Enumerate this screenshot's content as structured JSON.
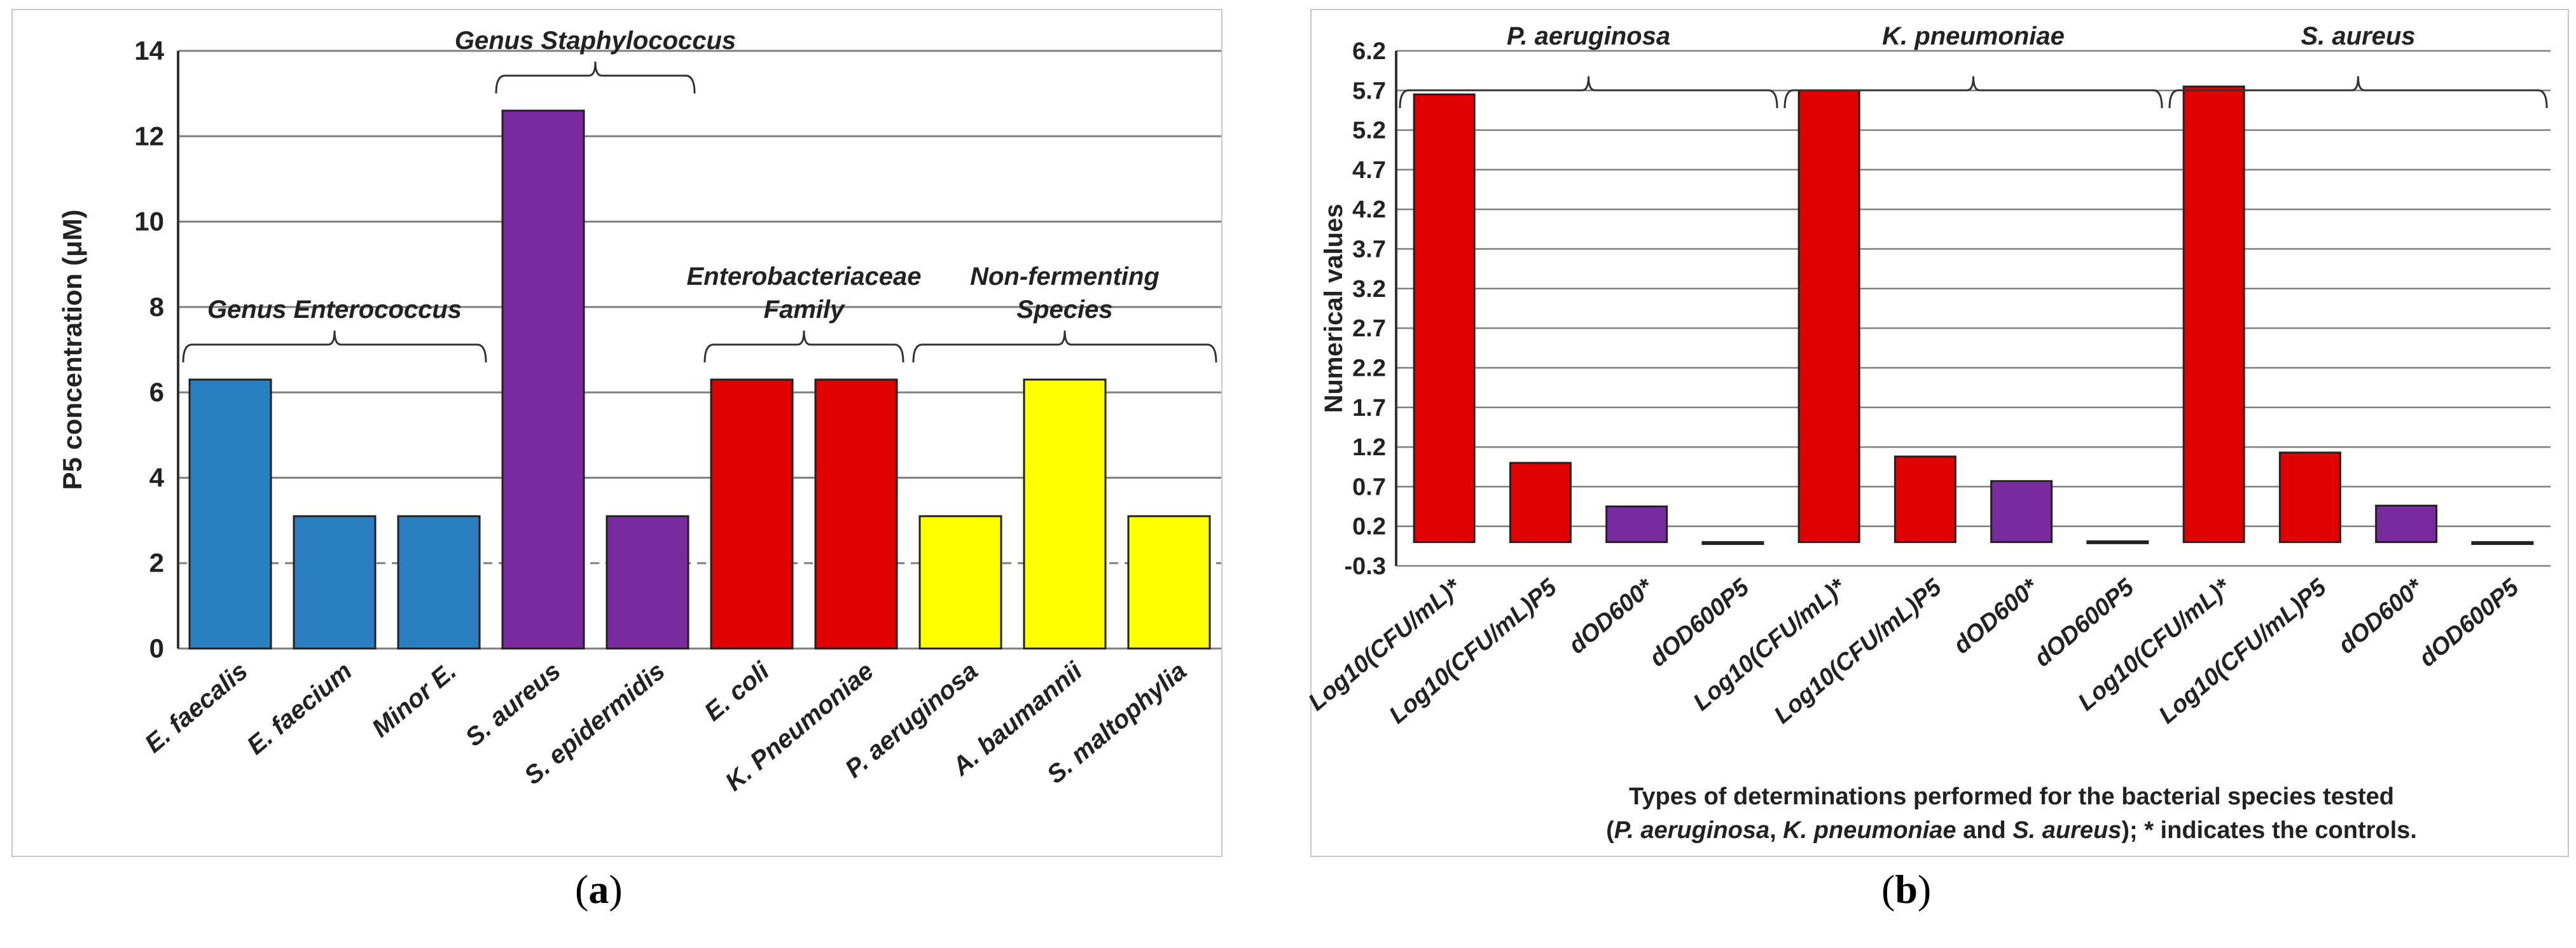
{
  "panel_labels": {
    "a_open": "(",
    "a_letter": "a",
    "a_close": ")",
    "b_open": "(",
    "b_letter": "b",
    "b_close": ")"
  },
  "colors": {
    "blue": "#2a7fc1",
    "purple": "#7a2a9f",
    "red": "#e00000",
    "yellow": "#ffff00",
    "grid": "#7f7f7f"
  },
  "chart_data": [
    {
      "id": "a",
      "type": "bar",
      "title": "",
      "xlabel": "",
      "ylabel": "P5 concentration (μM)",
      "ylim": [
        0,
        14
      ],
      "yticks": [
        "0",
        "2",
        "4",
        "6",
        "8",
        "10",
        "12",
        "14"
      ],
      "categories": [
        "E. faecalis",
        "E. faecium",
        "Minor E.",
        "S. aureus",
        "S. epidermidis",
        "E. coli",
        "K. Pneumoniae",
        "P. aeruginosa",
        "A. baumannii",
        "S. maltophylia"
      ],
      "values": [
        6.3,
        3.1,
        3.1,
        12.6,
        3.1,
        6.3,
        6.3,
        3.1,
        6.3,
        3.1
      ],
      "bar_colors": [
        "blue",
        "blue",
        "blue",
        "purple",
        "purple",
        "red",
        "red",
        "yellow",
        "yellow",
        "yellow"
      ],
      "groups": [
        {
          "lines": [
            "Genus Enterococcus"
          ],
          "from": 0,
          "to": 2
        },
        {
          "lines": [
            "Genus Staphylococcus"
          ],
          "from": 3,
          "to": 4
        },
        {
          "lines": [
            "Enterobacteriaceae",
            "Family"
          ],
          "from": 5,
          "to": 6
        },
        {
          "lines": [
            "Non-fermenting",
            "Species"
          ],
          "from": 7,
          "to": 9
        }
      ]
    },
    {
      "id": "b",
      "type": "bar",
      "title": "",
      "ylabel": "Numerical values",
      "xlabel_line1": "Types of determinations performed for the bacterial species tested",
      "xlabel_line2": {
        "open": "(",
        "sp1": "P. aeruginosa",
        "sep1": ", ",
        "sp2": "K. pneumoniae",
        "and": " and ",
        "sp3": "S. aureus",
        "close": "); * indicates the controls."
      },
      "ylim": [
        -0.3,
        6.2
      ],
      "yticks": [
        "-0.3",
        "0.2",
        "0.7",
        "1.2",
        "1.7",
        "2.2",
        "2.7",
        "3.2",
        "3.7",
        "4.2",
        "4.7",
        "5.2",
        "5.7",
        "6.2"
      ],
      "categories": [
        "Log10(CFU/mL)*",
        "Log10(CFU/mL)P5",
        "dOD600*",
        "dOD600P5",
        "Log10(CFU/mL)*",
        "Log10(CFU/mL)P5",
        "dOD600*",
        "dOD600P5",
        "Log10(CFU/mL)*",
        "Log10(CFU/mL)P5",
        "dOD600*",
        "dOD600P5"
      ],
      "values": [
        5.65,
        1.0,
        0.45,
        -0.02,
        5.7,
        1.08,
        0.77,
        0.01,
        5.75,
        1.13,
        0.46,
        -0.02
      ],
      "bar_colors": [
        "red",
        "red",
        "purple",
        "purple",
        "red",
        "red",
        "purple",
        "purple",
        "red",
        "red",
        "purple",
        "purple"
      ],
      "groups": [
        {
          "lines": [
            "P. aeruginosa"
          ],
          "from": 0,
          "to": 3
        },
        {
          "lines": [
            "K. pneumoniae"
          ],
          "from": 4,
          "to": 7
        },
        {
          "lines": [
            "S. aureus"
          ],
          "from": 8,
          "to": 11
        }
      ]
    }
  ]
}
